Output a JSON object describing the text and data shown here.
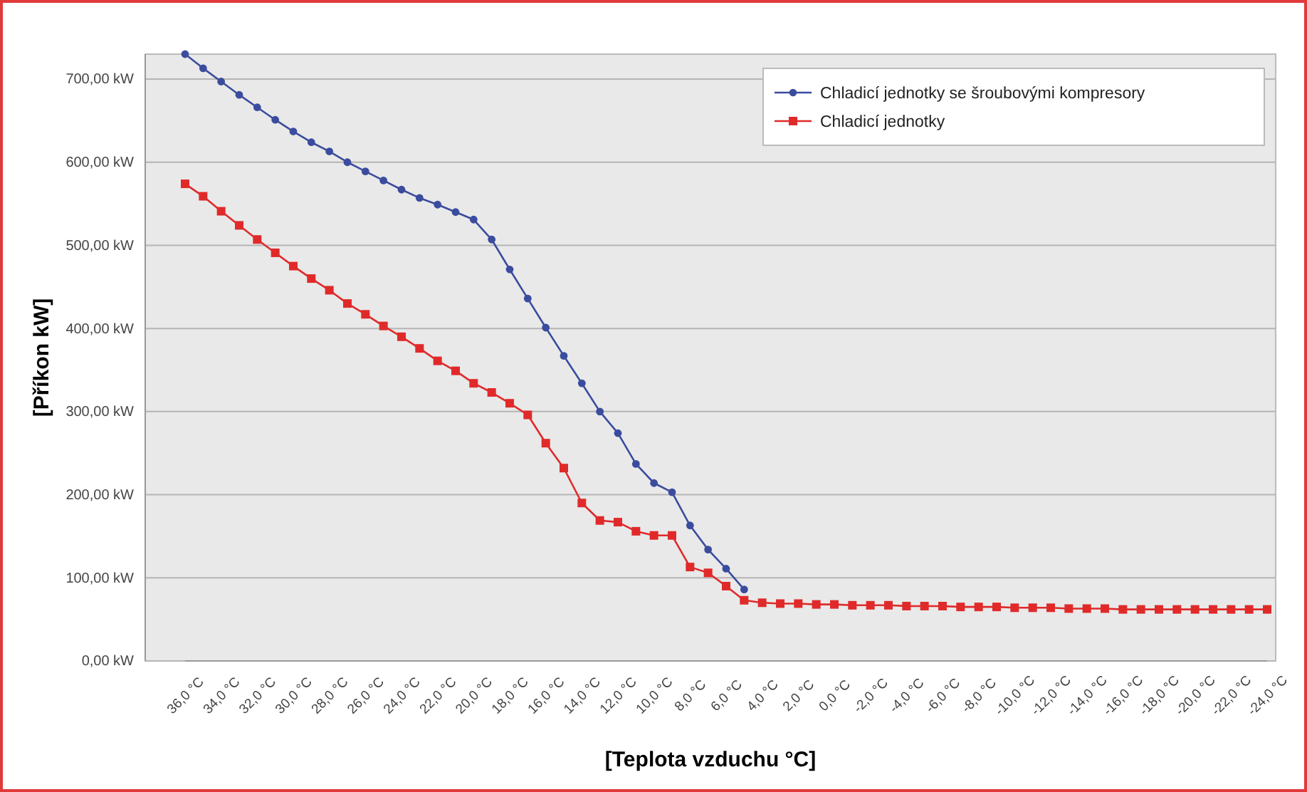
{
  "chart_data": {
    "type": "line",
    "xlabel": "[Teplota vzduchu °C]",
    "ylabel": "[Příkon kW]",
    "categories": [
      "36,0 °C",
      null,
      "34,0 °C",
      null,
      "32,0 °C",
      null,
      "30,0 °C",
      null,
      "28,0 °C",
      null,
      "26,0 °C",
      null,
      "24,0 °C",
      null,
      "22,0 °C",
      null,
      "20,0 °C",
      null,
      "18,0 °C",
      null,
      "16,0 °C",
      null,
      "14,0 °C",
      null,
      "12,0 °C",
      null,
      "10,0 °C",
      null,
      "8,0 °C",
      null,
      "6,0 °C",
      null,
      "4,0 °C",
      null,
      "2,0 °C",
      null,
      "0,0 °C",
      null,
      "-2,0 °C",
      null,
      "-4,0 °C",
      null,
      "-6,0 °C",
      null,
      "-8,0 °C",
      null,
      "-10,0 °C",
      null,
      "-12,0 °C",
      null,
      "-14,0 °C",
      null,
      "-16,0 °C",
      null,
      "-18,0 °C",
      null,
      "-20,0 °C",
      null,
      "-22,0 °C",
      null,
      "-24,0 °C"
    ],
    "series": [
      {
        "name": "Chladicí jednotky se šroubovými kompresory",
        "color": "#3b4c9e",
        "marker": "circle",
        "values": [
          730,
          713,
          697,
          681,
          666,
          651,
          637,
          624,
          613,
          600,
          589,
          578,
          567,
          557,
          549,
          540,
          531,
          507,
          471,
          436,
          401,
          367,
          334,
          300,
          274,
          237,
          214,
          203,
          163,
          134,
          111,
          86,
          null,
          null,
          null,
          null,
          null,
          null,
          null,
          null,
          null,
          null,
          null,
          null,
          null,
          null,
          null,
          null,
          null,
          null,
          null,
          null,
          null,
          null,
          null,
          null,
          null,
          null,
          null,
          null,
          null
        ]
      },
      {
        "name": "Chladicí jednotky",
        "color": "#e02a2a",
        "marker": "square",
        "values": [
          574,
          559,
          541,
          524,
          507,
          491,
          475,
          460,
          446,
          430,
          417,
          403,
          390,
          376,
          361,
          349,
          334,
          323,
          310,
          296,
          262,
          232,
          190,
          169,
          167,
          156,
          151,
          151,
          113,
          106,
          90,
          73,
          70,
          69,
          69,
          68,
          68,
          67,
          67,
          67,
          66,
          66,
          66,
          65,
          65,
          65,
          64,
          64,
          64,
          63,
          63,
          63,
          62,
          62,
          62,
          62,
          62,
          62,
          62,
          62,
          62
        ]
      }
    ],
    "ylim": [
      0,
      730
    ],
    "yticks": [
      {
        "value": 0,
        "label": "0,00 kW"
      },
      {
        "value": 100,
        "label": "100,00 kW"
      },
      {
        "value": 200,
        "label": "200,00 kW"
      },
      {
        "value": 300,
        "label": "300,00 kW"
      },
      {
        "value": 400,
        "label": "400,00 kW"
      },
      {
        "value": 500,
        "label": "500,00 kW"
      },
      {
        "value": 600,
        "label": "600,00 kW"
      },
      {
        "value": 700,
        "label": "700,00 kW"
      }
    ],
    "grid": "y",
    "legend": "top right"
  }
}
